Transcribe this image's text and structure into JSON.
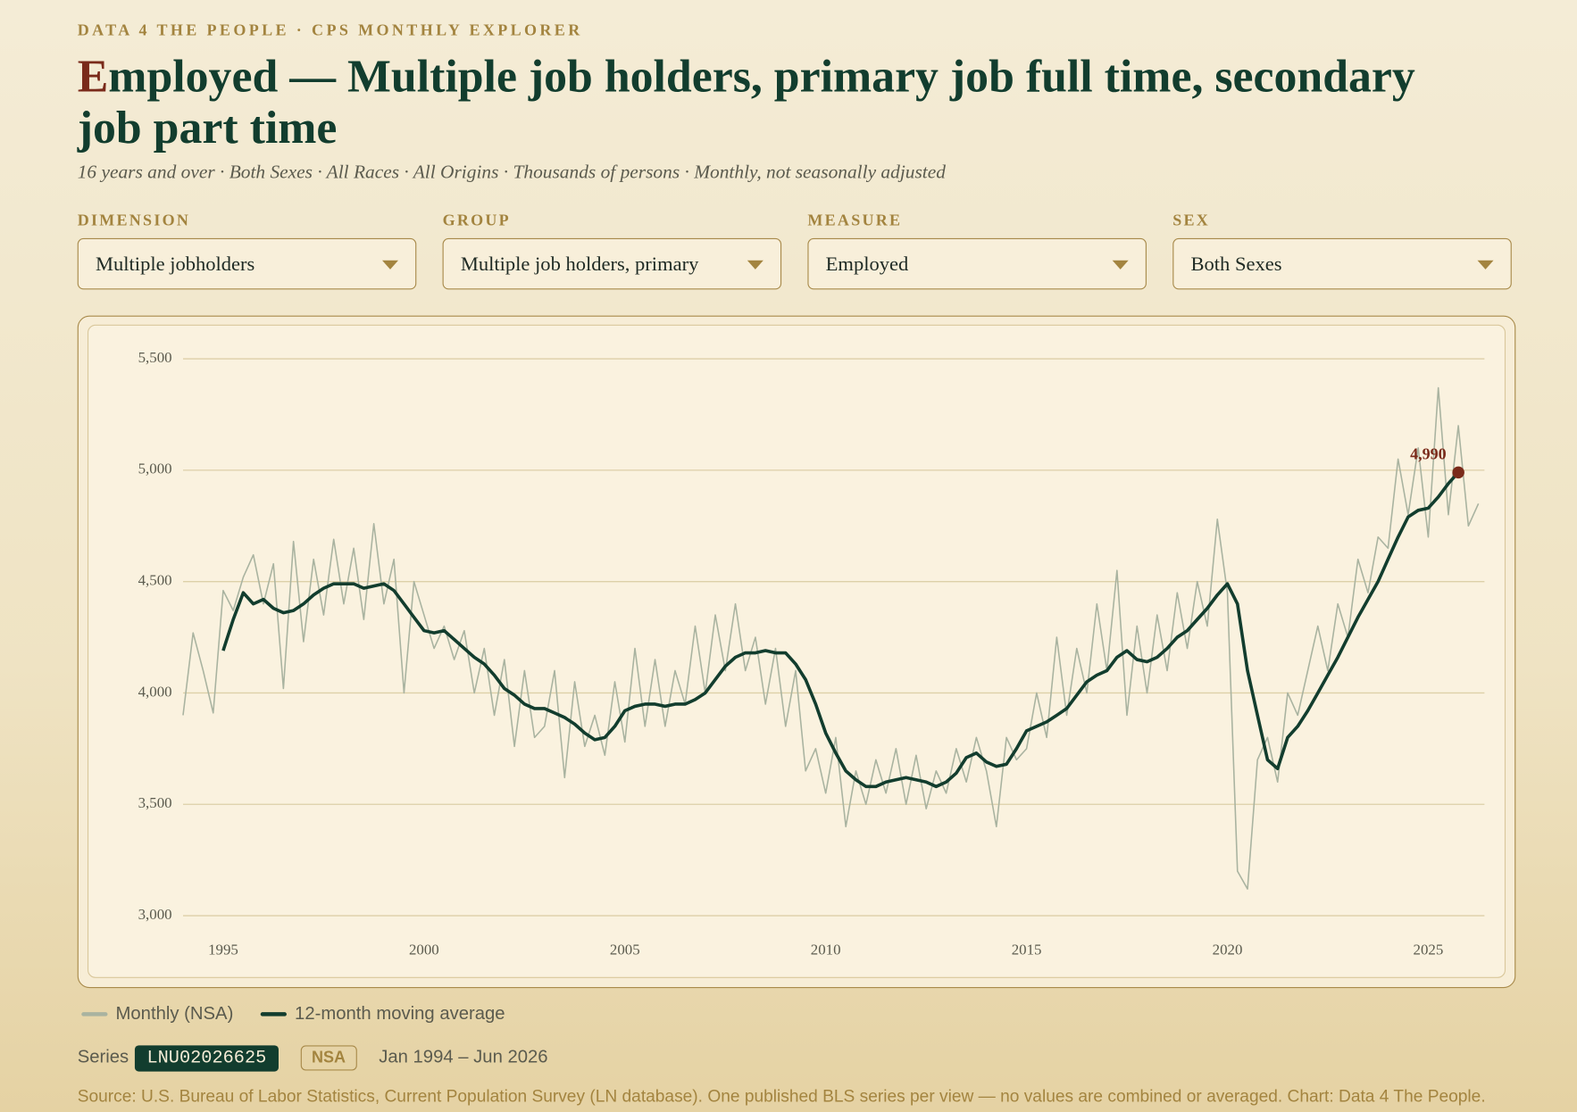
{
  "header": {
    "kicker": "DATA 4 THE PEOPLE · CPS MONTHLY EXPLORER",
    "title": "Employed — Multiple job holders, primary job full time, secondary job part time",
    "subtitle": "16 years and over · Both Sexes · All Races · All Origins · Thousands of persons · Monthly, not seasonally adjusted"
  },
  "controls": [
    {
      "label": "DIMENSION",
      "value": "Multiple jobholders"
    },
    {
      "label": "GROUP",
      "value": "Multiple job holders, primary"
    },
    {
      "label": "MEASURE",
      "value": "Employed"
    },
    {
      "label": "SEX",
      "value": "Both Sexes"
    }
  ],
  "chart_data": {
    "type": "line",
    "x": [
      1994,
      1994.25,
      1994.5,
      1994.75,
      1995,
      1995.25,
      1995.5,
      1995.75,
      1996,
      1996.25,
      1996.5,
      1996.75,
      1997,
      1997.25,
      1997.5,
      1997.75,
      1998,
      1998.25,
      1998.5,
      1998.75,
      1999,
      1999.25,
      1999.5,
      1999.75,
      2000,
      2000.25,
      2000.5,
      2000.75,
      2001,
      2001.25,
      2001.5,
      2001.75,
      2002,
      2002.25,
      2002.5,
      2002.75,
      2003,
      2003.25,
      2003.5,
      2003.75,
      2004,
      2004.25,
      2004.5,
      2004.75,
      2005,
      2005.25,
      2005.5,
      2005.75,
      2006,
      2006.25,
      2006.5,
      2006.75,
      2007,
      2007.25,
      2007.5,
      2007.75,
      2008,
      2008.25,
      2008.5,
      2008.75,
      2009,
      2009.25,
      2009.5,
      2009.75,
      2010,
      2010.25,
      2010.5,
      2010.75,
      2011,
      2011.25,
      2011.5,
      2011.75,
      2012,
      2012.25,
      2012.5,
      2012.75,
      2013,
      2013.25,
      2013.5,
      2013.75,
      2014,
      2014.25,
      2014.5,
      2014.75,
      2015,
      2015.25,
      2015.5,
      2015.75,
      2016,
      2016.25,
      2016.5,
      2016.75,
      2017,
      2017.25,
      2017.5,
      2017.75,
      2018,
      2018.25,
      2018.5,
      2018.75,
      2019,
      2019.25,
      2019.5,
      2019.75,
      2020,
      2020.25,
      2020.5,
      2020.75,
      2021,
      2021.25,
      2021.5,
      2021.75,
      2022,
      2022.25,
      2022.5,
      2022.75,
      2023,
      2023.25,
      2023.5,
      2023.75,
      2024,
      2024.25,
      2024.5,
      2024.75,
      2025,
      2025.25,
      2025.5,
      2025.75,
      2026,
      2026.25
    ],
    "series": [
      {
        "name": "Monthly (NSA)",
        "color": "#a9b3a0",
        "values": [
          3900,
          4270,
          4100,
          3910,
          4460,
          4370,
          4520,
          4620,
          4400,
          4580,
          4020,
          4680,
          4230,
          4600,
          4350,
          4690,
          4400,
          4650,
          4330,
          4760,
          4400,
          4600,
          4000,
          4500,
          4350,
          4200,
          4300,
          4150,
          4280,
          4000,
          4200,
          3900,
          4150,
          3760,
          4100,
          3800,
          3850,
          4100,
          3620,
          4050,
          3760,
          3900,
          3720,
          4050,
          3780,
          4200,
          3850,
          4150,
          3850,
          4100,
          3950,
          4300,
          4000,
          4350,
          4100,
          4400,
          4100,
          4250,
          3950,
          4200,
          3850,
          4100,
          3650,
          3750,
          3550,
          3800,
          3400,
          3650,
          3500,
          3700,
          3550,
          3750,
          3500,
          3720,
          3480,
          3650,
          3550,
          3750,
          3600,
          3800,
          3650,
          3400,
          3800,
          3700,
          3750,
          4000,
          3800,
          4250,
          3900,
          4200,
          4000,
          4400,
          4100,
          4550,
          3900,
          4300,
          4000,
          4350,
          4100,
          4450,
          4200,
          4500,
          4300,
          4780,
          4450,
          3200,
          3120,
          3700,
          3800,
          3600,
          4000,
          3900,
          4100,
          4300,
          4100,
          4400,
          4250,
          4600,
          4450,
          4700,
          4650,
          5050,
          4800,
          5100,
          4700,
          5370,
          4800,
          5200,
          4750,
          4850
        ]
      },
      {
        "name": "12-month moving average",
        "color": "#123d2e",
        "values": [
          null,
          null,
          null,
          null,
          4190,
          4330,
          4450,
          4400,
          4420,
          4380,
          4360,
          4370,
          4400,
          4440,
          4470,
          4490,
          4490,
          4490,
          4470,
          4480,
          4490,
          4460,
          4400,
          4340,
          4280,
          4270,
          4280,
          4240,
          4200,
          4160,
          4130,
          4080,
          4020,
          3990,
          3950,
          3930,
          3930,
          3910,
          3890,
          3860,
          3820,
          3790,
          3800,
          3850,
          3920,
          3940,
          3950,
          3950,
          3940,
          3950,
          3950,
          3970,
          4000,
          4060,
          4120,
          4160,
          4180,
          4180,
          4190,
          4180,
          4180,
          4130,
          4060,
          3950,
          3820,
          3730,
          3650,
          3610,
          3580,
          3580,
          3600,
          3610,
          3620,
          3610,
          3600,
          3580,
          3600,
          3640,
          3710,
          3730,
          3690,
          3670,
          3680,
          3750,
          3830,
          3850,
          3870,
          3900,
          3930,
          3990,
          4050,
          4080,
          4100,
          4160,
          4190,
          4150,
          4140,
          4160,
          4200,
          4250,
          4280,
          4330,
          4380,
          4440,
          4490,
          4400,
          4100,
          3900,
          3700,
          3660,
          3800,
          3850,
          3920,
          4000,
          4080,
          4160,
          4250,
          4340,
          4420,
          4500,
          4600,
          4700,
          4790,
          4820,
          4830,
          4880,
          4940,
          4990,
          null,
          null
        ]
      }
    ],
    "annotation": "4,990",
    "annotation_color": "#7a2a1a",
    "xlim": [
      1994,
      2026.4
    ],
    "xticks": [
      1995,
      2000,
      2005,
      2010,
      2015,
      2020,
      2025
    ],
    "ylim": [
      3000,
      5500
    ],
    "yticks": [
      {
        "value": 3000,
        "label": "3,000"
      },
      {
        "value": 3500,
        "label": "3,500"
      },
      {
        "value": 4000,
        "label": "4,000"
      },
      {
        "value": 4500,
        "label": "4,500"
      },
      {
        "value": 5000,
        "label": "5,000"
      },
      {
        "value": 5500,
        "label": "5,500"
      }
    ],
    "grid": true
  },
  "footer": {
    "series_label": "Series",
    "series_id": "LNU02026625",
    "adjustment": "NSA",
    "range": "Jan 1994 – Jun 2026",
    "source": "Source: U.S. Bureau of Labor Statistics, Current Population Survey (LN database). One published BLS series per view — no values are combined or averaged. Chart: Data 4 The People."
  }
}
